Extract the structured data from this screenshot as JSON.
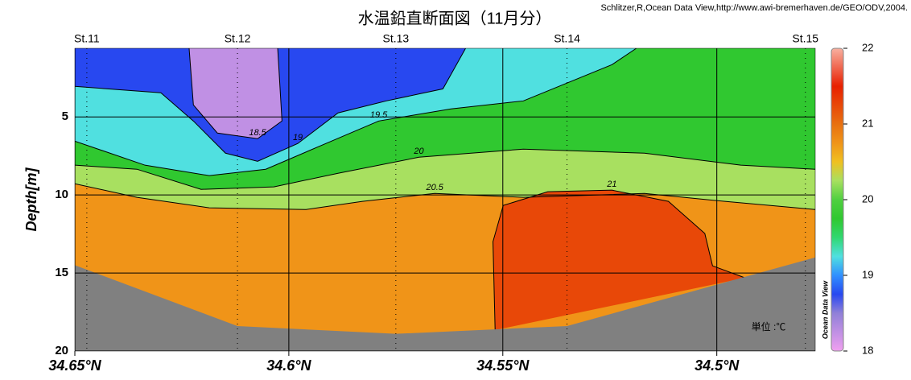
{
  "chart_data": {
    "type": "contour",
    "title": "水温鉛直断面図（11月分）",
    "credit": "Schlitzer,R,Ocean Data View,http://www.awi-bremerhaven.de/GEO/ODV,2004.",
    "y_label": "Depth[m]",
    "unit_note": "単位 :℃",
    "brand": "Ocean Data View",
    "xlim": [
      34.65,
      34.477
    ],
    "xticks": [
      {
        "value": 34.65,
        "label": "34.65°N"
      },
      {
        "value": 34.6,
        "label": "34.6°N"
      },
      {
        "value": 34.55,
        "label": "34.55°N"
      },
      {
        "value": 34.5,
        "label": "34.5°N"
      }
    ],
    "ylim": [
      0.6,
      20
    ],
    "yticks": [
      5,
      10,
      15,
      20
    ],
    "grid": true,
    "stations": {
      "names": [
        "St.11",
        "St.12",
        "St.13",
        "St.14",
        "St.15"
      ],
      "lat": [
        34.6472,
        34.612,
        34.575,
        34.535,
        34.4793
      ]
    },
    "contours": [
      {
        "level": 20.5,
        "lat": [
          34.65,
          34.6355,
          34.6186,
          34.596,
          34.5828,
          34.5659,
          34.5452,
          34.5169,
          34.4981,
          34.477
        ],
        "depth": [
          9.28,
          10.15,
          10.82,
          10.93,
          10.41,
          9.9,
          10.15,
          9.9,
          10.41,
          10.93
        ]
      },
      {
        "level": 20,
        "lat": [
          34.65,
          34.6355,
          34.6205,
          34.6035,
          34.5885,
          34.5696,
          34.5452,
          34.5169,
          34.4944,
          34.477
        ],
        "depth": [
          8.09,
          8.35,
          9.64,
          9.48,
          8.61,
          7.58,
          7.06,
          7.32,
          8.09,
          8.35
        ]
      },
      {
        "level": 19.5,
        "lat": [
          34.65,
          34.6336,
          34.6186,
          34.6054,
          34.5922,
          34.579,
          34.5621,
          34.5452,
          34.5245,
          34.5188
        ],
        "depth": [
          6.55,
          8.09,
          8.76,
          8.35,
          6.8,
          5.26,
          4.48,
          3.97,
          1.65,
          0.6
        ]
      },
      {
        "level": 19,
        "lat": [
          34.65,
          34.6299,
          34.6223,
          34.6148,
          34.6073,
          34.5979,
          34.5885,
          34.5772,
          34.564,
          34.5587
        ],
        "depth": [
          3.04,
          3.45,
          5.26,
          7.32,
          7.84,
          6.7,
          4.74,
          3.97,
          3.2,
          0.6
        ]
      },
      {
        "level": 18.5,
        "lat": [
          34.6233,
          34.6223,
          34.6167,
          34.6073,
          34.6016,
          34.6026
        ],
        "depth": [
          0.6,
          4.23,
          6.03,
          6.39,
          5.26,
          0.6
        ]
      },
      {
        "level": 21,
        "lat": [
          34.5518,
          34.5523,
          34.5499,
          34.5395,
          34.5245,
          34.5113,
          34.5028,
          34.501,
          34.4934
        ],
        "depth": [
          18.66,
          12.99,
          10.67,
          9.79,
          9.69,
          10.41,
          12.47,
          14.54,
          15.31
        ]
      }
    ],
    "bottom": {
      "lat": [
        34.65,
        34.612,
        34.575,
        34.535,
        34.477
      ],
      "depth": [
        14.5,
        18.4,
        18.9,
        18.4,
        14
      ],
      "color": "#808080"
    },
    "colorbar": {
      "range": [
        18,
        22
      ],
      "ticks": [
        18,
        19,
        20,
        21,
        22
      ],
      "levels": [
        18,
        18.5,
        18.75,
        19,
        19.25,
        19.5,
        19.75,
        20,
        20.25,
        20.5,
        20.75,
        21,
        21.5,
        22
      ],
      "colors": [
        "#f0a0f0",
        "#9080d8",
        "#2848f0",
        "#3090ff",
        "#50e0e0",
        "#30d870",
        "#30c830",
        "#50d040",
        "#a8e060",
        "#f0c020",
        "#f09418",
        "#e87010",
        "#e82000",
        "#f8b0a0"
      ]
    }
  }
}
